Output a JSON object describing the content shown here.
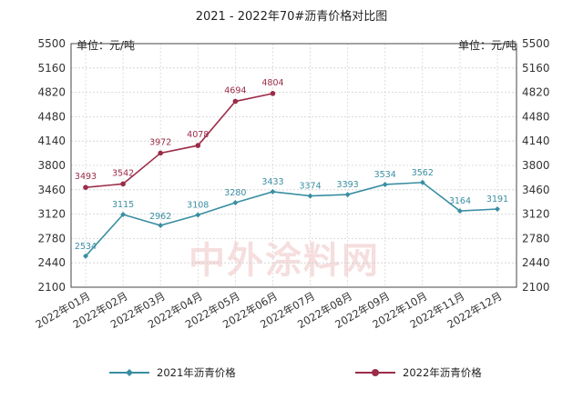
{
  "chart_data": {
    "type": "line",
    "title": "2021 - 2022年70#沥青价格对比图",
    "unit_left": "单位：元/吨",
    "unit_right": "单位：元/吨",
    "watermark": "中外涂料网",
    "categories": [
      "2022年01月",
      "2022年02月",
      "2022年03月",
      "2022年04月",
      "2022年05月",
      "2022年06月",
      "2022年07月",
      "2022年08月",
      "2022年09月",
      "2022年10月",
      "2022年11月",
      "2022年12月"
    ],
    "yticks": [
      2100,
      2440,
      2780,
      3120,
      3460,
      3800,
      4140,
      4480,
      4820,
      5160,
      5500
    ],
    "ylim": [
      2100,
      5500
    ],
    "grid": true,
    "legend_position": "bottom",
    "series": [
      {
        "name": "2021年沥青价格",
        "color": "#3a8ea2",
        "values": [
          2534,
          3115,
          2962,
          3108,
          3280,
          3433,
          3374,
          3393,
          3534,
          3562,
          3164,
          3191
        ]
      },
      {
        "name": "2022年沥青价格",
        "color": "#9b2c48",
        "values": [
          3493,
          3542,
          3972,
          4078,
          4694,
          4804,
          null,
          null,
          null,
          null,
          null,
          null
        ]
      }
    ]
  }
}
